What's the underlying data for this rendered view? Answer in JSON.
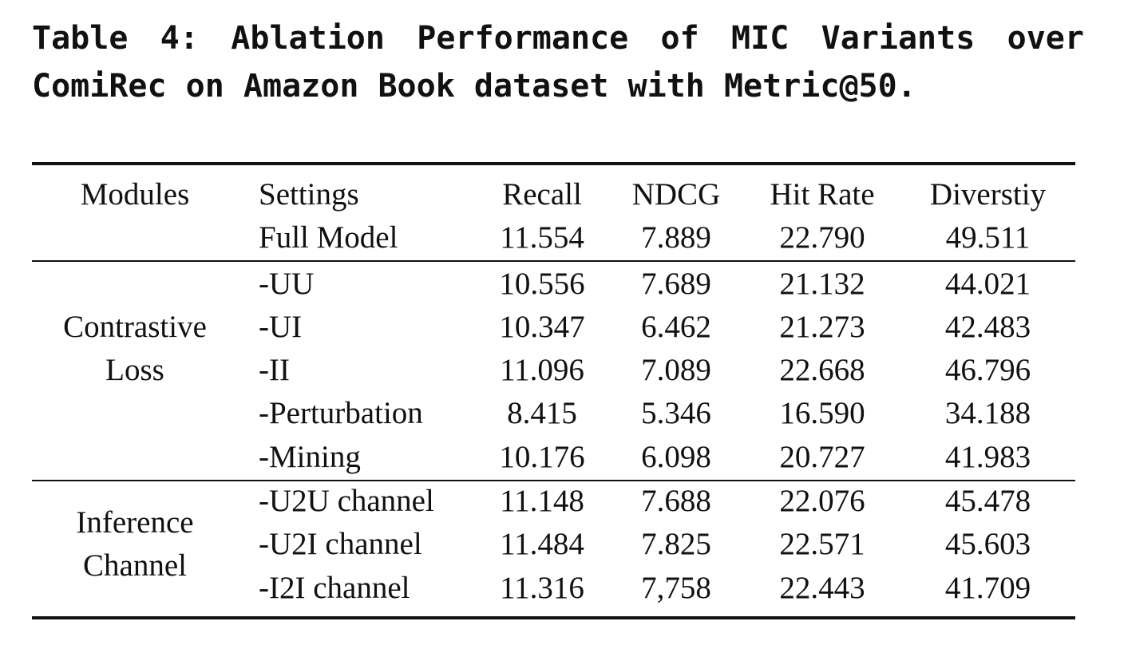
{
  "caption": {
    "words": [
      "Table",
      "4:",
      "Ablation",
      "Performance",
      "of",
      "MIC",
      "Variants",
      "over"
    ],
    "line2": "ComiRec on Amazon Book dataset with Metric@50."
  },
  "table": {
    "headers": [
      "Modules",
      "Settings",
      "Recall",
      "NDCG",
      "Hit Rate",
      "Diverstiy"
    ],
    "groups": [
      {
        "module_lines": [],
        "rows": [
          {
            "setting": "Full Model",
            "recall": "11.554",
            "ndcg": "7.889",
            "hit_rate": "22.790",
            "diversity": "49.511"
          }
        ]
      },
      {
        "module_lines": [
          "Contrastive",
          "Loss"
        ],
        "rows": [
          {
            "setting": "-UU",
            "recall": "10.556",
            "ndcg": "7.689",
            "hit_rate": "21.132",
            "diversity": "44.021"
          },
          {
            "setting": "-UI",
            "recall": "10.347",
            "ndcg": "6.462",
            "hit_rate": "21.273",
            "diversity": "42.483"
          },
          {
            "setting": "-II",
            "recall": "11.096",
            "ndcg": "7.089",
            "hit_rate": "22.668",
            "diversity": "46.796"
          },
          {
            "setting": "-Perturbation",
            "recall": "8.415",
            "ndcg": "5.346",
            "hit_rate": "16.590",
            "diversity": "34.188"
          },
          {
            "setting": "-Mining",
            "recall": "10.176",
            "ndcg": "6.098",
            "hit_rate": "20.727",
            "diversity": "41.983"
          }
        ]
      },
      {
        "module_lines": [
          "Inference",
          "Channel"
        ],
        "rows": [
          {
            "setting": "-U2U channel",
            "recall": "11.148",
            "ndcg": "7.688",
            "hit_rate": "22.076",
            "diversity": "45.478"
          },
          {
            "setting": "-U2I channel",
            "recall": "11.484",
            "ndcg": "7.825",
            "hit_rate": "22.571",
            "diversity": "45.603"
          },
          {
            "setting": "-I2I channel",
            "recall": "11.316",
            "ndcg": "7,758",
            "hit_rate": "22.443",
            "diversity": "41.709"
          }
        ]
      }
    ]
  }
}
